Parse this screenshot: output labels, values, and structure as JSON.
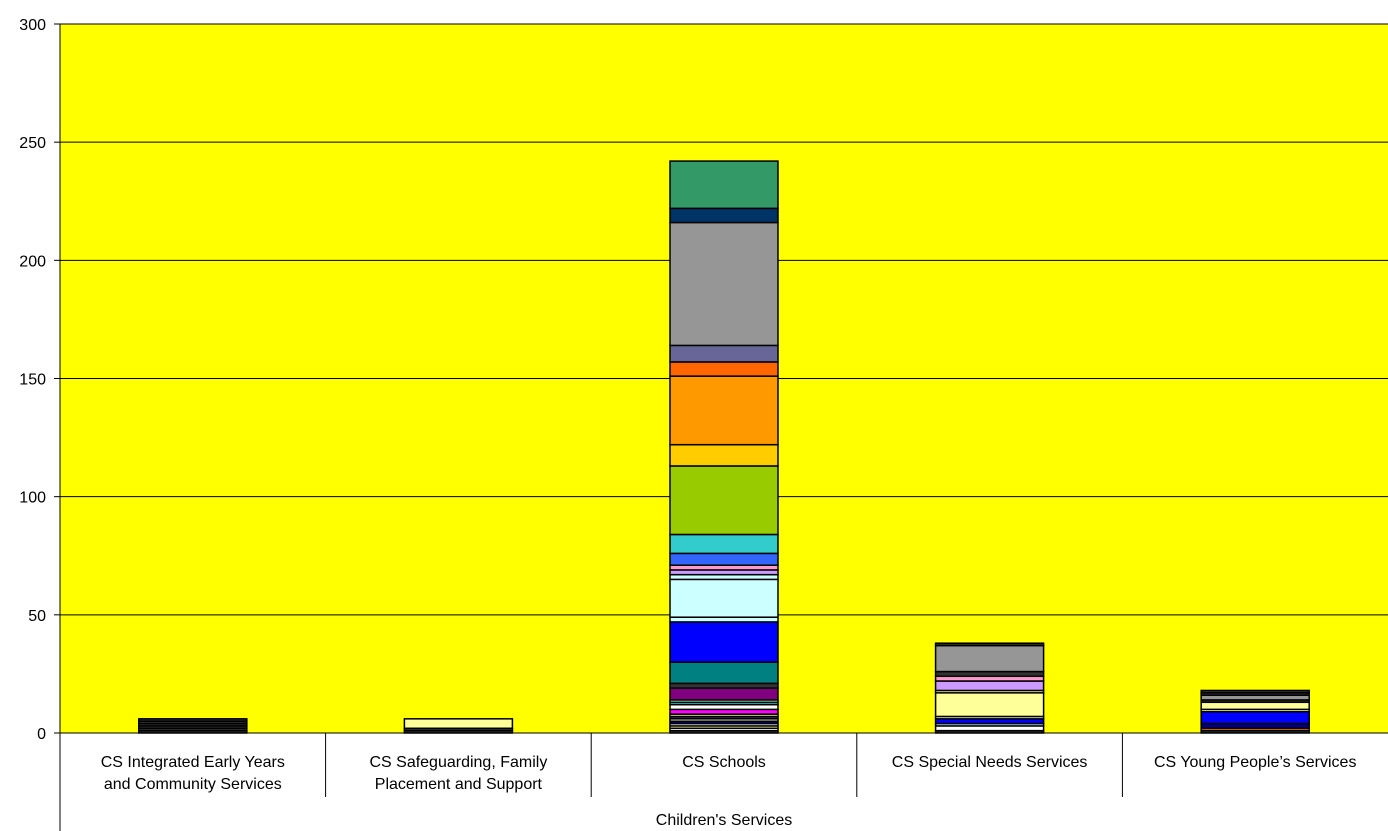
{
  "chart_data": {
    "type": "bar",
    "stacked": true,
    "plot_background": "#FFFF00",
    "grid": true,
    "legend": "none",
    "ylim": [
      0,
      300
    ],
    "yticks": [
      0,
      50,
      100,
      150,
      200,
      250,
      300
    ],
    "group_label": "Children's Services",
    "categories": [
      "CS Integrated Early Years and Community Services",
      "CS Safeguarding, Family Placement and Support",
      "CS Schools",
      "CS Special Needs Services",
      "CS Young People’s Services"
    ],
    "category_lines": [
      [
        "CS Integrated Early Years",
        "and Community Services"
      ],
      [
        "CS Safeguarding, Family",
        "Placement and Support"
      ],
      [
        "CS Schools"
      ],
      [
        "CS Special Needs Services"
      ],
      [
        "CS Young People’s Services"
      ]
    ],
    "stacks": [
      [
        {
          "value": 1,
          "color": "#333333"
        },
        {
          "value": 1,
          "color": "#333333"
        },
        {
          "value": 1,
          "color": "#333333"
        },
        {
          "value": 1,
          "color": "#333333"
        },
        {
          "value": 1,
          "color": "#333333"
        },
        {
          "value": 1,
          "color": "#333333"
        }
      ],
      [
        {
          "value": 1,
          "color": "#333333"
        },
        {
          "value": 1,
          "color": "#333333"
        },
        {
          "value": 4,
          "color": "#FFFF99"
        }
      ],
      [
        {
          "value": 1,
          "color": "#333333"
        },
        {
          "value": 1,
          "color": "#FFFFFF"
        },
        {
          "value": 1,
          "color": "#FFFF99"
        },
        {
          "value": 1,
          "color": "#FFFFFF"
        },
        {
          "value": 1,
          "color": "#000080"
        },
        {
          "value": 1,
          "color": "#FFFFFF"
        },
        {
          "value": 1,
          "color": "#333333"
        },
        {
          "value": 1,
          "color": "#FFFF99"
        },
        {
          "value": 2,
          "color": "#FF00FF"
        },
        {
          "value": 2,
          "color": "#FFFFFF"
        },
        {
          "value": 1,
          "color": "#00CCCC"
        },
        {
          "value": 1,
          "color": "#CCFFCC"
        },
        {
          "value": 5,
          "color": "#800080"
        },
        {
          "value": 2,
          "color": "#333333"
        },
        {
          "value": 9,
          "color": "#008080"
        },
        {
          "value": 17,
          "color": "#0000FF"
        },
        {
          "value": 2,
          "color": "#CCFFFF"
        },
        {
          "value": 16,
          "color": "#CCFFFF"
        },
        {
          "value": 2,
          "color": "#CCFFFF"
        },
        {
          "value": 2,
          "color": "#CC99FF"
        },
        {
          "value": 2,
          "color": "#FF99CC"
        },
        {
          "value": 5,
          "color": "#3366FF"
        },
        {
          "value": 8,
          "color": "#33CCCC"
        },
        {
          "value": 29,
          "color": "#99CC00"
        },
        {
          "value": 9,
          "color": "#FFCC00"
        },
        {
          "value": 29,
          "color": "#FF9900"
        },
        {
          "value": 6,
          "color": "#FF6600"
        },
        {
          "value": 7,
          "color": "#666699"
        },
        {
          "value": 52,
          "color": "#969696"
        },
        {
          "value": 6,
          "color": "#003366"
        },
        {
          "value": 20,
          "color": "#339966"
        }
      ],
      [
        {
          "value": 1,
          "color": "#333333"
        },
        {
          "value": 2,
          "color": "#FFFFFF"
        },
        {
          "value": 1,
          "color": "#CCFFFF"
        },
        {
          "value": 2,
          "color": "#0000FF"
        },
        {
          "value": 1,
          "color": "#FFFF99"
        },
        {
          "value": 10,
          "color": "#FFFF99"
        },
        {
          "value": 1,
          "color": "#FFFF99"
        },
        {
          "value": 4,
          "color": "#CC99FF"
        },
        {
          "value": 2,
          "color": "#FF99CC"
        },
        {
          "value": 2,
          "color": "#333333"
        },
        {
          "value": 11,
          "color": "#969696"
        },
        {
          "value": 1,
          "color": "#333333"
        }
      ],
      [
        {
          "value": 1,
          "color": "#333333"
        },
        {
          "value": 1,
          "color": "#FF6600"
        },
        {
          "value": 2,
          "color": "#000080"
        },
        {
          "value": 5,
          "color": "#0000FF"
        },
        {
          "value": 1,
          "color": "#FFFF99"
        },
        {
          "value": 3,
          "color": "#FFFF99"
        },
        {
          "value": 1,
          "color": "#333333"
        },
        {
          "value": 2,
          "color": "#969696"
        },
        {
          "value": 1,
          "color": "#333333"
        },
        {
          "value": 1,
          "color": "#333333"
        }
      ]
    ]
  }
}
